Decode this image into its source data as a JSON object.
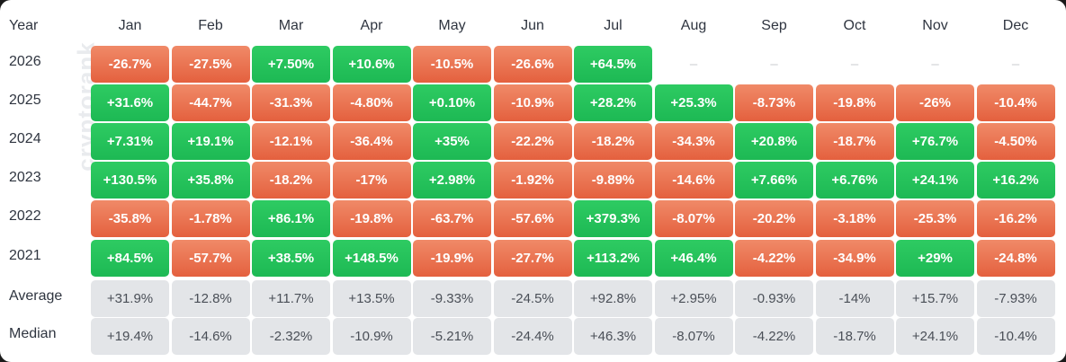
{
  "chart_data": {
    "type": "heatmap",
    "corner_label": "Year",
    "columns": [
      "Jan",
      "Feb",
      "Mar",
      "Apr",
      "May",
      "Jun",
      "Jul",
      "Aug",
      "Sep",
      "Oct",
      "Nov",
      "Dec"
    ],
    "rows": [
      {
        "label": "2026",
        "values": [
          "-26.7%",
          "-27.5%",
          "+7.50%",
          "+10.6%",
          "-10.5%",
          "-26.6%",
          "+64.5%",
          "–",
          "–",
          "–",
          "–",
          "–"
        ]
      },
      {
        "label": "2025",
        "values": [
          "+31.6%",
          "-44.7%",
          "-31.3%",
          "-4.80%",
          "+0.10%",
          "-10.9%",
          "+28.2%",
          "+25.3%",
          "-8.73%",
          "-19.8%",
          "-26%",
          "-10.4%"
        ]
      },
      {
        "label": "2024",
        "values": [
          "+7.31%",
          "+19.1%",
          "-12.1%",
          "-36.4%",
          "+35%",
          "-22.2%",
          "-18.2%",
          "-34.3%",
          "+20.8%",
          "-18.7%",
          "+76.7%",
          "-4.50%"
        ]
      },
      {
        "label": "2023",
        "values": [
          "+130.5%",
          "+35.8%",
          "-18.2%",
          "-17%",
          "+2.98%",
          "-1.92%",
          "-9.89%",
          "-14.6%",
          "+7.66%",
          "+6.76%",
          "+24.1%",
          "+16.2%"
        ]
      },
      {
        "label": "2022",
        "values": [
          "-35.8%",
          "-1.78%",
          "+86.1%",
          "-19.8%",
          "-63.7%",
          "-57.6%",
          "+379.3%",
          "-8.07%",
          "-20.2%",
          "-3.18%",
          "-25.3%",
          "-16.2%"
        ]
      },
      {
        "label": "2021",
        "values": [
          "+84.5%",
          "-57.7%",
          "+38.5%",
          "+148.5%",
          "-19.9%",
          "-27.7%",
          "+113.2%",
          "+46.4%",
          "-4.22%",
          "-34.9%",
          "+29%",
          "-24.8%"
        ]
      }
    ],
    "summary_rows": [
      {
        "label": "Average",
        "values": [
          "+31.9%",
          "-12.8%",
          "+11.7%",
          "+13.5%",
          "-9.33%",
          "-24.5%",
          "+92.8%",
          "+2.95%",
          "-0.93%",
          "-14%",
          "+15.7%",
          "-7.93%"
        ]
      },
      {
        "label": "Median",
        "values": [
          "+19.4%",
          "-14.6%",
          "-2.32%",
          "-10.9%",
          "-5.21%",
          "-24.4%",
          "+46.3%",
          "-8.07%",
          "-4.22%",
          "-18.7%",
          "+24.1%",
          "-10.4%"
        ]
      }
    ],
    "colors": {
      "positive": "#1db954",
      "negative": "#e4603e",
      "summary": "#e3e5e8",
      "empty_text": "#c9cbcf"
    }
  },
  "watermark": "cryptorank"
}
